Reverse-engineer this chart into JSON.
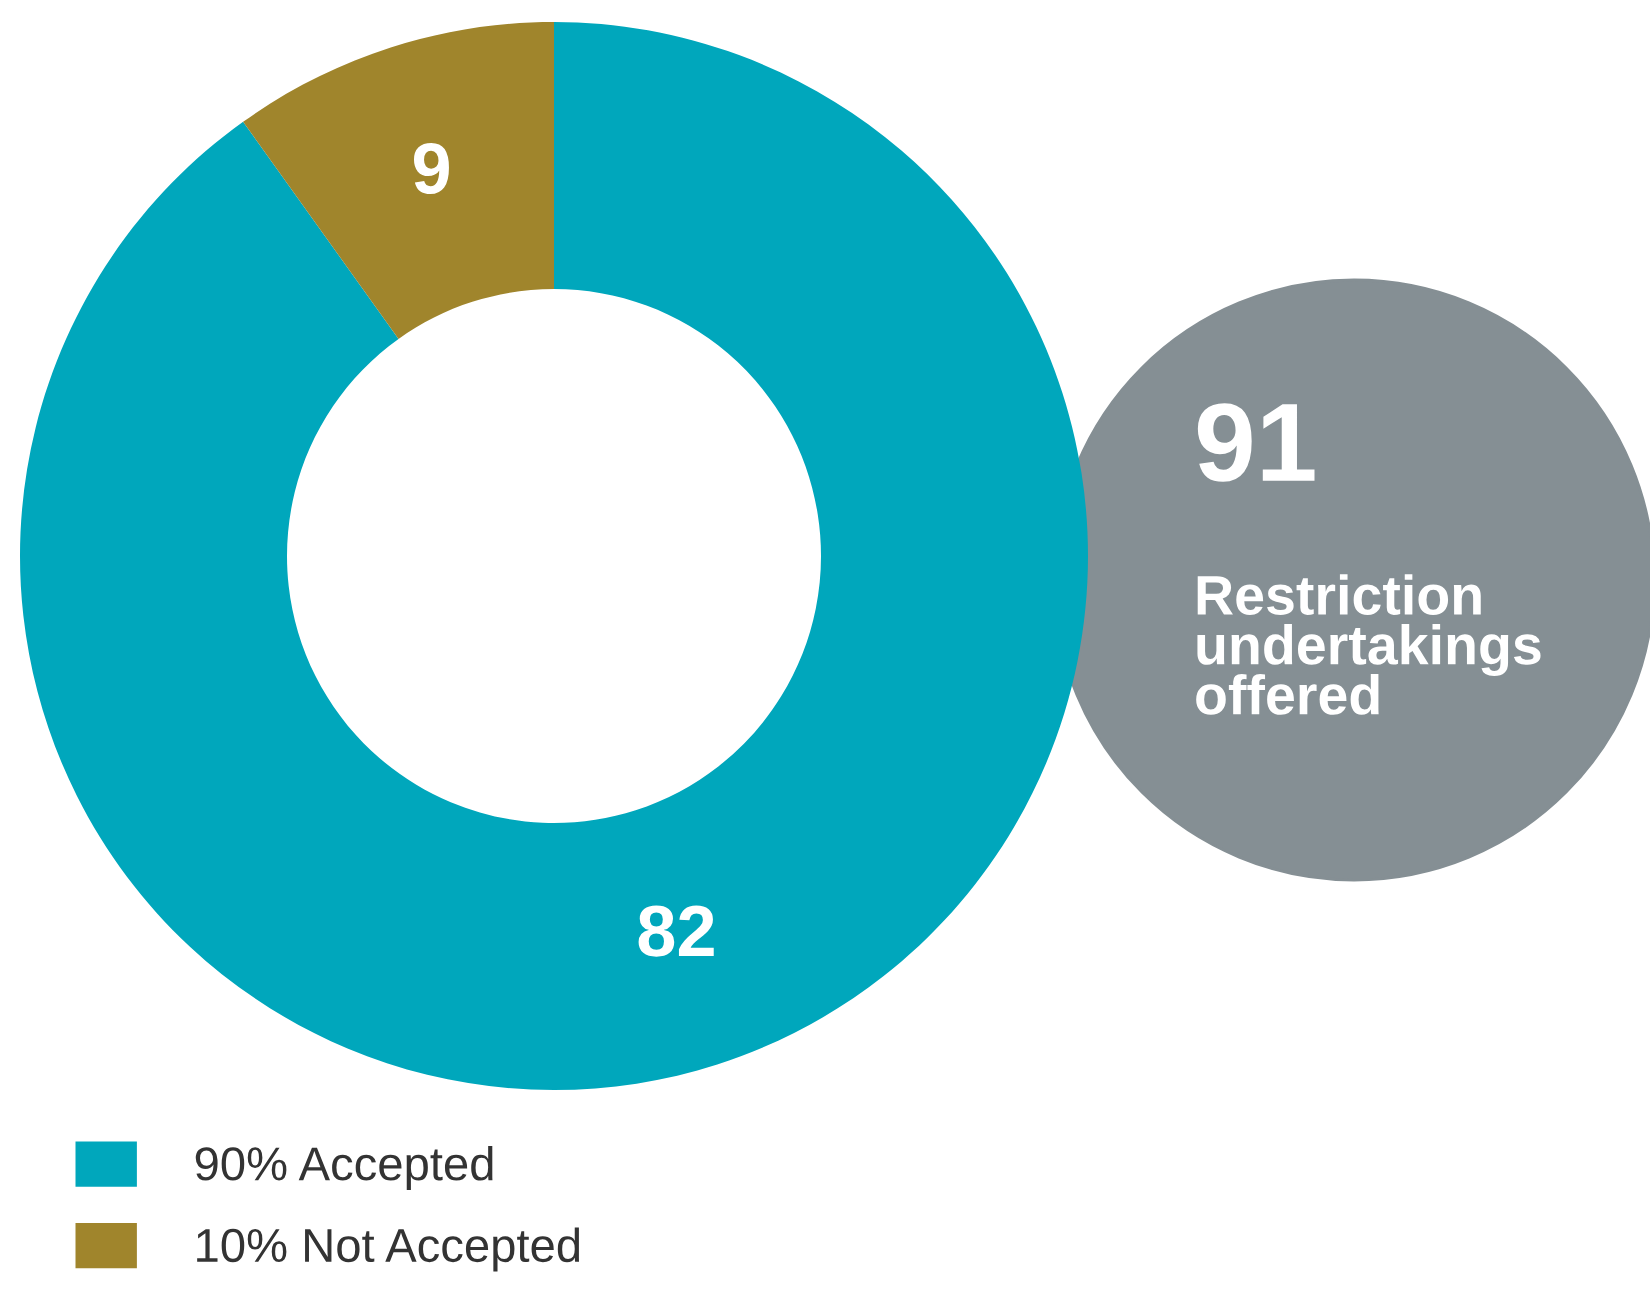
{
  "chart_data": {
    "type": "donut",
    "categories": [
      "90% Accepted",
      "10% Not Accepted"
    ],
    "values": [
      82,
      9
    ],
    "colors": [
      "#00a7bc",
      "#a0852c"
    ],
    "data_labels": true,
    "legend": "bottom left",
    "annotations": [
      "91",
      "Restriction undertakings offered"
    ]
  }
}
